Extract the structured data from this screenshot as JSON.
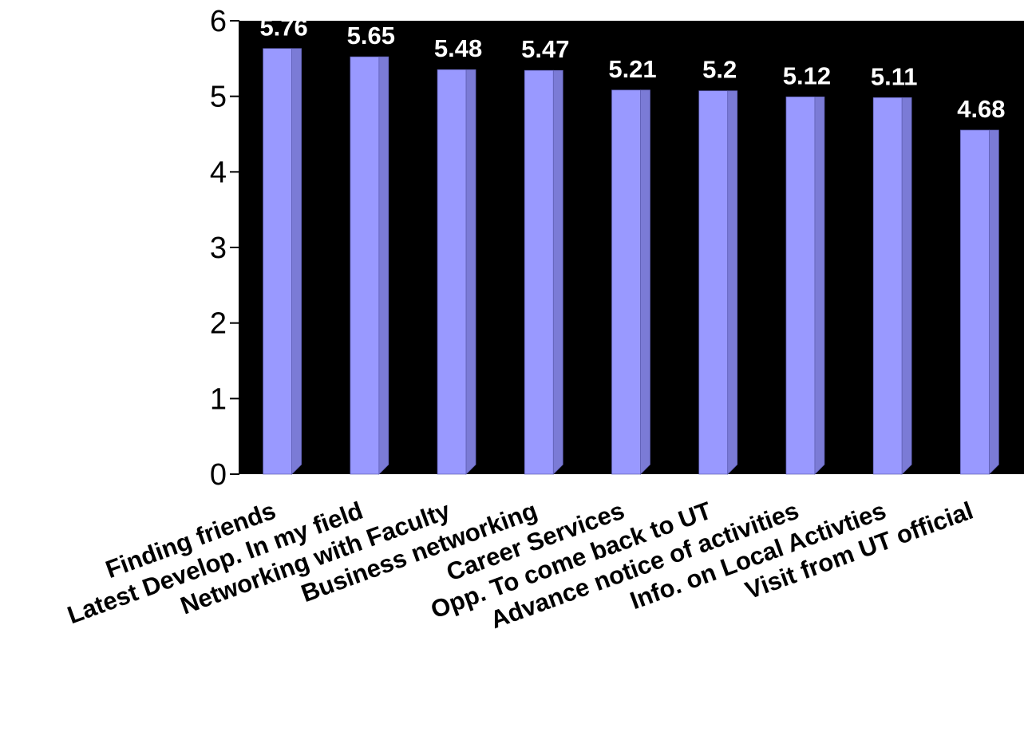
{
  "chart_data": {
    "type": "bar",
    "categories": [
      "Finding friends",
      "Latest Develop. In my field",
      "Networking with Faculty",
      "Business networking",
      "Career Services",
      "Opp. To come back to UT",
      "Advance notice of activities",
      "Info. on Local Activties",
      "Visit from UT official"
    ],
    "values": [
      5.76,
      5.65,
      5.48,
      5.47,
      5.21,
      5.2,
      5.12,
      5.11,
      4.68
    ],
    "data_labels": [
      "5.76",
      "5.65",
      "5.48",
      "5.47",
      "5.21",
      "5.2",
      "5.12",
      "5.11",
      "4.68"
    ],
    "yticks": [
      "0",
      "1",
      "2",
      "3",
      "4",
      "5",
      "6"
    ],
    "ylim": [
      0,
      6
    ],
    "title": "",
    "xlabel": "",
    "ylabel": "",
    "grid": false,
    "legend": "none",
    "colors": {
      "plot_background": "#000000",
      "bar_front": "#9999ff",
      "bar_side": "#7b7bd6",
      "axis": "#000000"
    }
  }
}
